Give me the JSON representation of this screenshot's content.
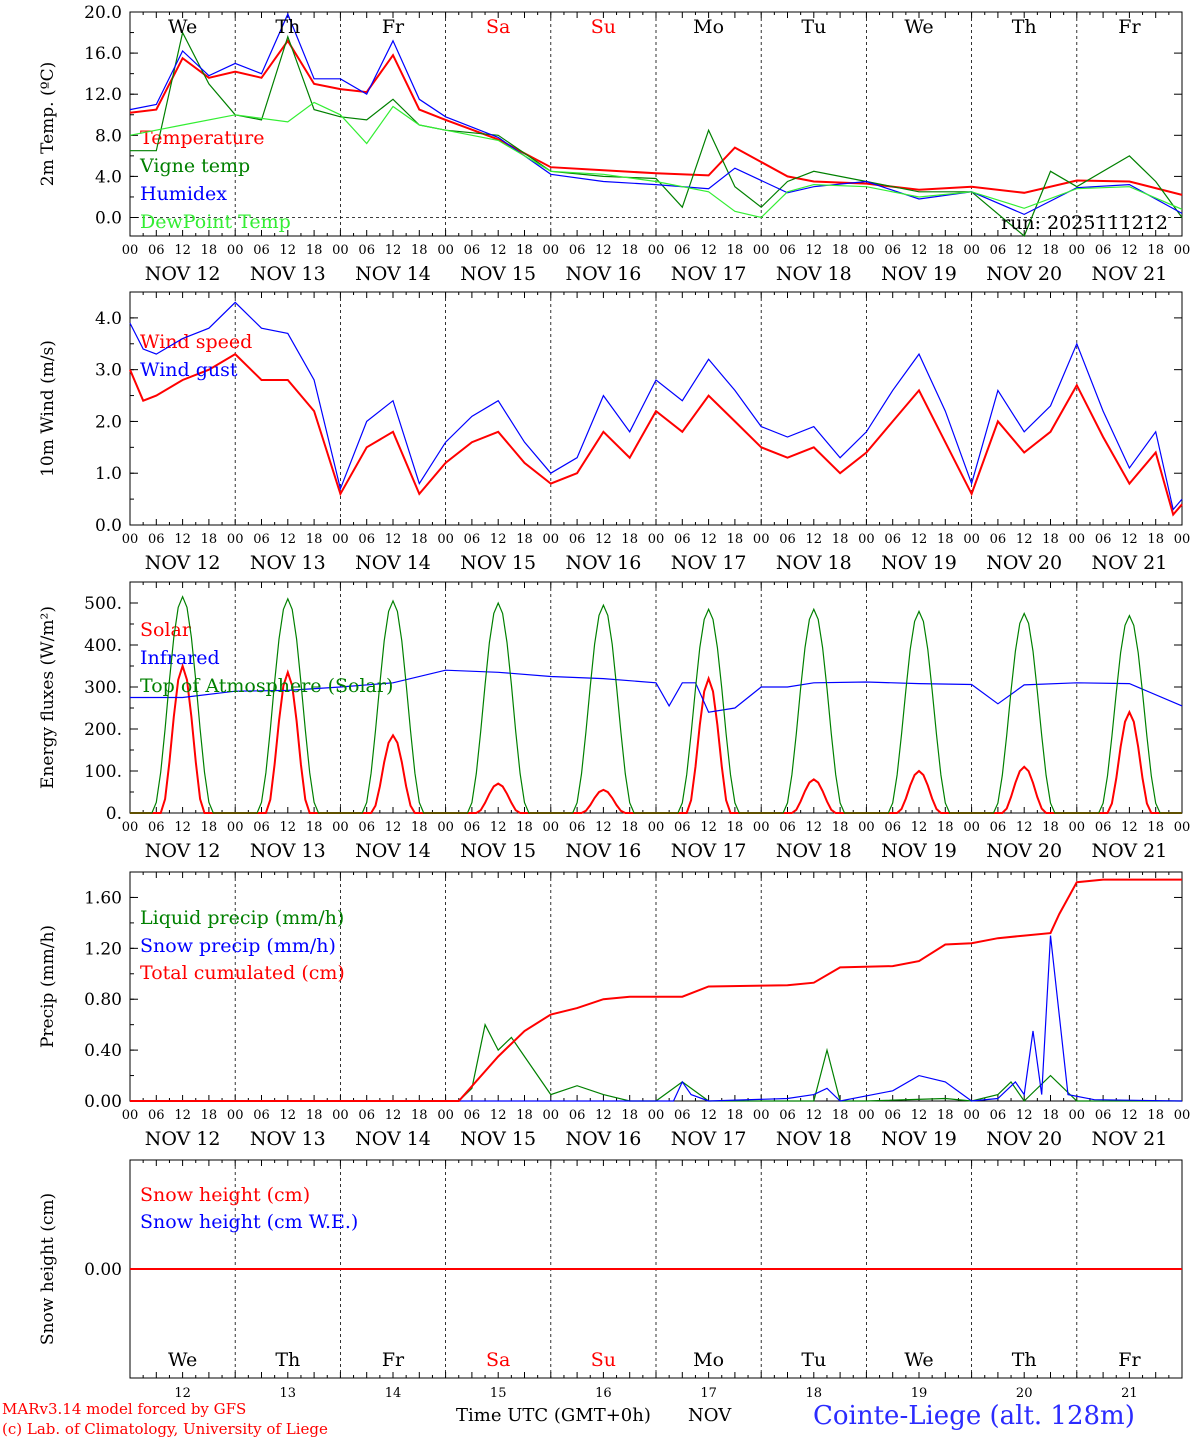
{
  "colors": {
    "red": "#ff0000",
    "green": "#008000",
    "blue": "#0000ff",
    "lightgreen": "#33ee33",
    "weekend": "#ff0000"
  },
  "run_label": "run: 2025111212",
  "days": [
    "We",
    "Th",
    "Fr",
    "Sa",
    "Su",
    "Mo",
    "Tu",
    "We",
    "Th",
    "Fr"
  ],
  "weekend_days": [
    3,
    4
  ],
  "dates": [
    "NOV 12",
    "NOV 13",
    "NOV 14",
    "NOV 15",
    "NOV 16",
    "NOV 17",
    "NOV 18",
    "NOV 19",
    "NOV 20",
    "NOV 21"
  ],
  "hour_ticks": [
    "00",
    "06",
    "12",
    "18"
  ],
  "bottom_day_numbers": [
    "12",
    "13",
    "14",
    "15",
    "16",
    "17",
    "18",
    "19",
    "20",
    "21"
  ],
  "footer": {
    "model": "MARv3.14 model forced by GFS",
    "lab": "(c) Lab. of Climatology, University of Liege",
    "time_label": "Time UTC (GMT+0h)",
    "month": "NOV",
    "station": "Cointe-Liege (alt. 128m)"
  },
  "chart_data": [
    {
      "type": "line",
      "ylabel": "2m Temp. (ºC)",
      "ylim": [
        -1.8,
        20.0
      ],
      "yticks": [
        "0.0",
        "4.0",
        "8.0",
        "12.0",
        "16.0",
        "20.0"
      ],
      "yvals": [
        0,
        4,
        8,
        12,
        16,
        20
      ],
      "zero_line": true,
      "x_unit": "hours from NOV 12 00 UTC",
      "series": [
        {
          "name": "Temperature",
          "color": "red",
          "x": [
            0,
            6,
            12,
            18,
            24,
            30,
            36,
            42,
            48,
            54,
            60,
            66,
            72,
            84,
            96,
            108,
            120,
            132,
            138,
            150,
            156,
            168,
            180,
            192,
            204,
            216,
            228,
            240
          ],
          "values": [
            10.2,
            10.5,
            15.5,
            13.6,
            14.2,
            13.6,
            17.2,
            13.0,
            12.5,
            12.2,
            15.8,
            10.5,
            9.5,
            7.6,
            4.9,
            4.6,
            4.3,
            4.1,
            6.8,
            4.0,
            3.5,
            3.3,
            2.7,
            3.0,
            2.4,
            3.6,
            3.5,
            2.2
          ]
        },
        {
          "name": "Vigne temp",
          "color": "green",
          "x": [
            0,
            6,
            12,
            18,
            24,
            30,
            36,
            42,
            48,
            54,
            60,
            66,
            72,
            84,
            96,
            108,
            120,
            126,
            132,
            138,
            144,
            150,
            156,
            168,
            180,
            192,
            204,
            210,
            216,
            228,
            234,
            240
          ],
          "values": [
            6.5,
            6.5,
            18.0,
            13.0,
            10.0,
            9.5,
            17.6,
            10.5,
            9.8,
            9.5,
            11.5,
            9.0,
            8.5,
            8.0,
            4.5,
            4.0,
            3.8,
            1.0,
            8.5,
            3.0,
            1.0,
            3.5,
            4.5,
            3.5,
            2.5,
            2.5,
            -1.8,
            4.5,
            3.0,
            6.0,
            3.5,
            0.0
          ]
        },
        {
          "name": "Humidex",
          "color": "blue",
          "x": [
            0,
            6,
            12,
            18,
            24,
            30,
            36,
            42,
            48,
            54,
            60,
            66,
            72,
            84,
            96,
            108,
            120,
            132,
            138,
            150,
            156,
            168,
            180,
            192,
            204,
            216,
            228,
            240
          ],
          "values": [
            10.5,
            11.0,
            16.2,
            13.8,
            15.0,
            14.0,
            19.8,
            13.5,
            13.5,
            12.0,
            17.2,
            11.5,
            9.8,
            7.8,
            4.2,
            3.5,
            3.2,
            2.8,
            4.8,
            2.4,
            3.0,
            3.5,
            1.8,
            2.5,
            0.3,
            2.9,
            3.2,
            0.4
          ]
        },
        {
          "name": "DewPoint Temp",
          "color": "lightgreen",
          "x": [
            0,
            12,
            24,
            36,
            42,
            48,
            54,
            60,
            66,
            72,
            84,
            96,
            108,
            120,
            132,
            138,
            144,
            150,
            156,
            168,
            180,
            192,
            204,
            216,
            228,
            240
          ],
          "values": [
            8.0,
            9.0,
            10.0,
            9.3,
            11.2,
            10.0,
            7.2,
            10.8,
            9.0,
            8.5,
            7.5,
            4.5,
            4.2,
            3.5,
            2.5,
            0.6,
            0.0,
            2.5,
            3.2,
            3.0,
            2.0,
            2.5,
            0.9,
            2.8,
            3.0,
            0.8
          ]
        }
      ]
    },
    {
      "type": "line",
      "ylabel": "10m Wind (m/s)",
      "ylim": [
        0.0,
        4.5
      ],
      "yticks": [
        "0.0",
        "1.0",
        "2.0",
        "3.0",
        "4.0"
      ],
      "yvals": [
        0,
        1,
        2,
        3,
        4
      ],
      "series": [
        {
          "name": "Wind speed",
          "color": "red",
          "x": [
            0,
            3,
            6,
            12,
            18,
            24,
            30,
            36,
            42,
            48,
            54,
            60,
            66,
            72,
            78,
            84,
            90,
            96,
            102,
            108,
            114,
            120,
            126,
            132,
            138,
            144,
            150,
            156,
            162,
            168,
            174,
            180,
            186,
            192,
            198,
            204,
            210,
            216,
            222,
            228,
            234,
            238,
            240
          ],
          "values": [
            3.0,
            2.4,
            2.5,
            2.8,
            3.0,
            3.3,
            2.8,
            2.8,
            2.2,
            0.6,
            1.5,
            1.8,
            0.6,
            1.2,
            1.6,
            1.8,
            1.2,
            0.8,
            1.0,
            1.8,
            1.3,
            2.2,
            1.8,
            2.5,
            2.0,
            1.5,
            1.3,
            1.5,
            1.0,
            1.4,
            2.0,
            2.6,
            1.6,
            0.6,
            2.0,
            1.4,
            1.8,
            2.7,
            1.7,
            0.8,
            1.4,
            0.2,
            0.4
          ]
        },
        {
          "name": "Wind gust",
          "color": "blue",
          "x": [
            0,
            3,
            6,
            12,
            18,
            24,
            30,
            36,
            42,
            48,
            54,
            60,
            66,
            72,
            78,
            84,
            90,
            96,
            102,
            108,
            114,
            120,
            126,
            132,
            138,
            144,
            150,
            156,
            162,
            168,
            174,
            180,
            186,
            192,
            198,
            204,
            210,
            216,
            222,
            228,
            234,
            238,
            240
          ],
          "values": [
            3.9,
            3.4,
            3.3,
            3.6,
            3.8,
            4.3,
            3.8,
            3.7,
            2.8,
            0.7,
            2.0,
            2.4,
            0.8,
            1.6,
            2.1,
            2.4,
            1.6,
            1.0,
            1.3,
            2.5,
            1.8,
            2.8,
            2.4,
            3.2,
            2.6,
            1.9,
            1.7,
            1.9,
            1.3,
            1.8,
            2.6,
            3.3,
            2.2,
            0.8,
            2.6,
            1.8,
            2.3,
            3.5,
            2.2,
            1.1,
            1.8,
            0.3,
            0.5
          ]
        }
      ]
    },
    {
      "type": "line",
      "ylabel": "Energy fluxes (W/m²)",
      "ylim": [
        0,
        550
      ],
      "yticks": [
        "0.",
        "100.",
        "200.",
        "300.",
        "400.",
        "500."
      ],
      "yvals": [
        0,
        100,
        200,
        300,
        400,
        500
      ],
      "series": [
        {
          "name": "Solar",
          "color": "red",
          "peaks": [
            350,
            335,
            185,
            70,
            55,
            320,
            80,
            100,
            110,
            240
          ]
        },
        {
          "name": "Infrared",
          "color": "blue",
          "x": [
            0,
            12,
            24,
            36,
            48,
            60,
            72,
            84,
            96,
            108,
            120,
            123,
            126,
            129,
            132,
            138,
            144,
            150,
            156,
            168,
            180,
            192,
            198,
            204,
            216,
            228,
            240
          ],
          "values": [
            275,
            275,
            290,
            292,
            300,
            310,
            340,
            335,
            325,
            320,
            310,
            255,
            310,
            310,
            240,
            250,
            300,
            300,
            310,
            312,
            308,
            306,
            260,
            305,
            310,
            308,
            255
          ]
        },
        {
          "name": "Top of Atmosphere (Solar)",
          "color": "green",
          "peaks": [
            515,
            510,
            505,
            500,
            495,
            485,
            485,
            480,
            475,
            470
          ]
        }
      ]
    },
    {
      "type": "line",
      "ylabel": "Precip (mm/h)",
      "ylim": [
        0,
        1.8
      ],
      "yticks": [
        "0.00",
        "0.40",
        "0.80",
        "1.20",
        "1.60"
      ],
      "yvals": [
        0,
        0.4,
        0.8,
        1.2,
        1.6
      ],
      "series": [
        {
          "name": "Liquid precip (mm/h)",
          "color": "green",
          "x": [
            0,
            75,
            78,
            81,
            84,
            87,
            90,
            96,
            102,
            108,
            114,
            120,
            126,
            132,
            138,
            156,
            159,
            162,
            168,
            186,
            192,
            198,
            201,
            204,
            210,
            216,
            240
          ],
          "values": [
            0,
            0,
            0.1,
            0.6,
            0.4,
            0.5,
            0.35,
            0.05,
            0.12,
            0.05,
            0,
            0,
            0.15,
            0,
            0,
            0,
            0.4,
            0,
            0,
            0.02,
            0,
            0.05,
            0.15,
            0,
            0.2,
            0,
            0
          ]
        },
        {
          "name": "Snow precip (mm/h)",
          "color": "blue",
          "x": [
            0,
            124,
            126,
            128,
            132,
            150,
            156,
            159,
            162,
            174,
            180,
            186,
            192,
            198,
            202,
            204,
            206,
            208,
            210,
            214,
            220,
            240
          ],
          "values": [
            0,
            0,
            0.15,
            0.05,
            0,
            0.02,
            0.05,
            0.1,
            0,
            0.08,
            0.2,
            0.15,
            0,
            0.02,
            0.15,
            0.05,
            0.55,
            0.05,
            1.3,
            0.05,
            0.01,
            0
          ]
        },
        {
          "name": "Total cumulated (cm)",
          "color": "red",
          "x": [
            0,
            75,
            84,
            90,
            96,
            102,
            108,
            114,
            120,
            126,
            132,
            150,
            156,
            162,
            174,
            180,
            186,
            192,
            198,
            204,
            210,
            212,
            216,
            222,
            228,
            240
          ],
          "values": [
            0,
            0,
            0.35,
            0.55,
            0.68,
            0.73,
            0.8,
            0.82,
            0.82,
            0.82,
            0.9,
            0.91,
            0.93,
            1.05,
            1.06,
            1.1,
            1.23,
            1.24,
            1.28,
            1.3,
            1.32,
            1.47,
            1.72,
            1.74,
            1.74,
            1.74
          ]
        }
      ]
    },
    {
      "type": "line",
      "ylabel": "Snow height (cm)",
      "ylim": [
        -1,
        1
      ],
      "yticks": [
        "0.00"
      ],
      "yvals": [
        0
      ],
      "series": [
        {
          "name": "Snow height (cm)",
          "color": "red",
          "x": [
            0,
            240
          ],
          "values": [
            0,
            0
          ]
        },
        {
          "name": "Snow height (cm W.E.)",
          "color": "blue",
          "x": [],
          "values": []
        }
      ]
    }
  ]
}
